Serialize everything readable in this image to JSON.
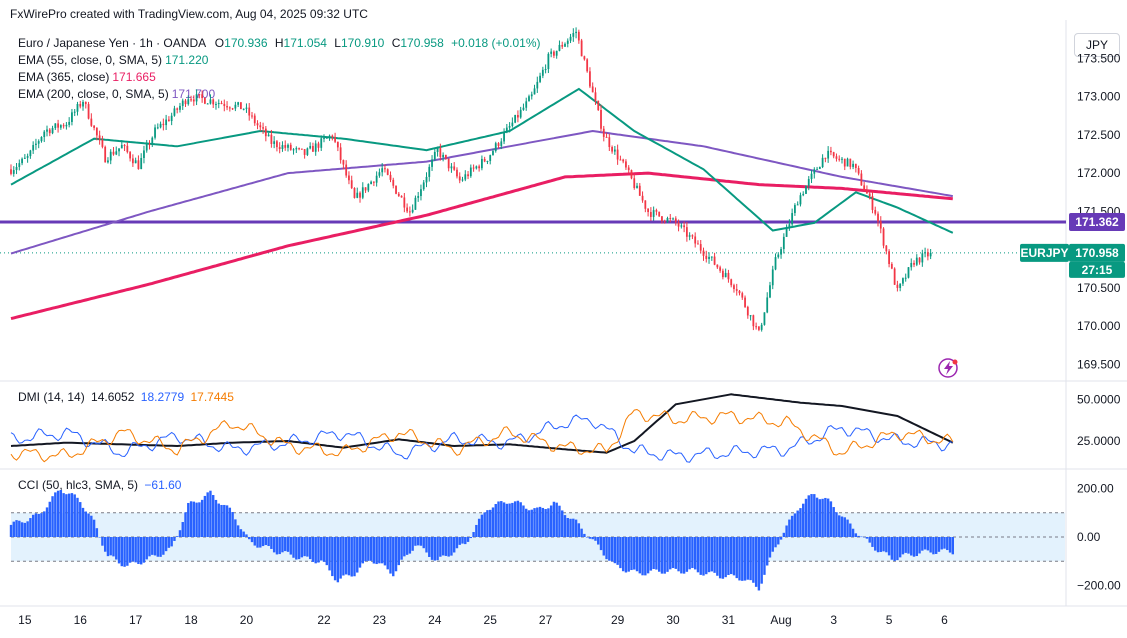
{
  "header": {
    "credit": "FxWirePro created with TradingView.com, Aug 04, 2025 09:32 UTC"
  },
  "currency_button": "JPY",
  "legend": {
    "symbol": "Euro / Japanese Yen · 1h · OANDA",
    "o_label": "O",
    "o": "170.936",
    "h_label": "H",
    "h": "171.054",
    "l_label": "L",
    "l": "170.910",
    "c_label": "C",
    "c": "170.958",
    "change": "+0.018 (+0.01%)",
    "ema55_label": "EMA (55, close, 0, SMA, 5)",
    "ema55": "171.220",
    "ema365_label": "EMA (365, close)",
    "ema365": "171.665",
    "ema200_label": "EMA (200, close, 0, SMA, 5)",
    "ema200": "171.700",
    "dmi_label": "DMI (14, 14)",
    "dmi_adx": "14.6052",
    "dmi_plus": "18.2779",
    "dmi_minus": "17.7445",
    "cci_label": "CCI (50, hlc3, SMA, 5)",
    "cci": "−61.60"
  },
  "colors": {
    "up": "#089981",
    "down": "#f23645",
    "ema55": "#089981",
    "ema365": "#e91e63",
    "ema200": "#7e57c2",
    "hline": "#673ab7",
    "adx": "#131722",
    "di_plus": "#2962ff",
    "di_minus": "#f57c00",
    "cci": "#2962ff",
    "cci_band": "#e3f2fd",
    "price_tag": "#089981"
  },
  "price_tags": {
    "hline_value": "171.362",
    "symbol": "EURJPY",
    "last": "170.958",
    "countdown": "27:15"
  },
  "chart_data": [
    {
      "type": "candlestick",
      "title": "Euro / Japanese Yen · 1h · OANDA",
      "ylim": [
        169.35,
        174.0
      ],
      "y_ticks": [
        "173.500",
        "173.000",
        "172.500",
        "172.000",
        "171.500",
        "171.000",
        "170.500",
        "170.000",
        "169.500"
      ],
      "y_tick_values": [
        173.5,
        173.0,
        172.5,
        172.0,
        171.5,
        171.0,
        170.5,
        170.0,
        169.5
      ],
      "x_labels": [
        "15",
        "16",
        "17",
        "18",
        "20",
        "22",
        "23",
        "24",
        "25",
        "27",
        "29",
        "30",
        "31",
        "Aug",
        "3",
        "5",
        "6"
      ],
      "x_label_index": [
        5,
        25,
        45,
        65,
        85,
        113,
        133,
        153,
        173,
        193,
        219,
        239,
        259,
        278,
        297,
        317,
        337
      ],
      "horizontal_line": 171.362,
      "price_anchors": [
        [
          0,
          172.05
        ],
        [
          6,
          172.2
        ],
        [
          12,
          172.55
        ],
        [
          20,
          172.65
        ],
        [
          26,
          172.95
        ],
        [
          34,
          172.2
        ],
        [
          40,
          172.35
        ],
        [
          46,
          172.1
        ],
        [
          52,
          172.55
        ],
        [
          58,
          172.75
        ],
        [
          64,
          173.0
        ],
        [
          72,
          172.95
        ],
        [
          84,
          172.85
        ],
        [
          94,
          172.4
        ],
        [
          106,
          172.25
        ],
        [
          116,
          172.5
        ],
        [
          124,
          171.65
        ],
        [
          134,
          172.05
        ],
        [
          144,
          171.5
        ],
        [
          154,
          172.3
        ],
        [
          162,
          171.9
        ],
        [
          172,
          172.2
        ],
        [
          180,
          172.6
        ],
        [
          188,
          173.0
        ],
        [
          194,
          173.5
        ],
        [
          204,
          173.85
        ],
        [
          214,
          172.5
        ],
        [
          222,
          172.05
        ],
        [
          230,
          171.5
        ],
        [
          240,
          171.35
        ],
        [
          252,
          170.9
        ],
        [
          262,
          170.5
        ],
        [
          270,
          169.9
        ],
        [
          276,
          170.85
        ],
        [
          284,
          171.65
        ],
        [
          294,
          172.25
        ],
        [
          304,
          172.1
        ],
        [
          312,
          171.5
        ],
        [
          320,
          170.45
        ],
        [
          326,
          170.85
        ],
        [
          332,
          170.95
        ]
      ],
      "ema55_anchors": [
        [
          0,
          171.85
        ],
        [
          30,
          172.45
        ],
        [
          60,
          172.35
        ],
        [
          90,
          172.55
        ],
        [
          120,
          172.45
        ],
        [
          150,
          172.3
        ],
        [
          180,
          172.55
        ],
        [
          205,
          173.1
        ],
        [
          225,
          172.55
        ],
        [
          250,
          172.05
        ],
        [
          275,
          171.25
        ],
        [
          290,
          171.35
        ],
        [
          305,
          171.75
        ],
        [
          320,
          171.55
        ],
        [
          340,
          171.22
        ]
      ],
      "ema365_anchors": [
        [
          0,
          170.1
        ],
        [
          50,
          170.55
        ],
        [
          100,
          171.05
        ],
        [
          150,
          171.45
        ],
        [
          200,
          171.95
        ],
        [
          230,
          172.0
        ],
        [
          270,
          171.85
        ],
        [
          300,
          171.8
        ],
        [
          340,
          171.665
        ]
      ],
      "ema200_anchors": [
        [
          0,
          170.95
        ],
        [
          50,
          171.5
        ],
        [
          100,
          172.0
        ],
        [
          150,
          172.15
        ],
        [
          210,
          172.55
        ],
        [
          250,
          172.35
        ],
        [
          300,
          171.95
        ],
        [
          340,
          171.7
        ]
      ],
      "last_close": 170.958
    },
    {
      "type": "line",
      "title": "DMI (14, 14)",
      "ylim": [
        10,
        58
      ],
      "y_ticks": [
        "50.0000",
        "25.0000"
      ],
      "y_tick_values": [
        50,
        25
      ],
      "series": [
        {
          "name": "ADX",
          "anchors": [
            [
              0,
              22
            ],
            [
              20,
              24
            ],
            [
              40,
              23
            ],
            [
              60,
              22
            ],
            [
              80,
              24
            ],
            [
              100,
              25
            ],
            [
              120,
              21
            ],
            [
              140,
              26
            ],
            [
              160,
              22
            ],
            [
              180,
              23
            ],
            [
              200,
              20
            ],
            [
              215,
              18
            ],
            [
              225,
              25
            ],
            [
              240,
              47
            ],
            [
              260,
              53
            ],
            [
              285,
              48
            ],
            [
              300,
              46
            ],
            [
              320,
              40
            ],
            [
              340,
              24
            ]
          ]
        },
        {
          "name": "+DI",
          "anchors": [
            [
              0,
              26
            ],
            [
              20,
              30
            ],
            [
              40,
              18
            ],
            [
              60,
              28
            ],
            [
              80,
              20
            ],
            [
              100,
              24
            ],
            [
              120,
              30
            ],
            [
              140,
              17
            ],
            [
              160,
              26
            ],
            [
              180,
              24
            ],
            [
              200,
              36
            ],
            [
              210,
              38
            ],
            [
              225,
              19
            ],
            [
              240,
              16
            ],
            [
              260,
              18
            ],
            [
              280,
              20
            ],
            [
              300,
              33
            ],
            [
              320,
              25
            ],
            [
              340,
              23
            ]
          ]
        },
        {
          "name": "-DI",
          "anchors": [
            [
              0,
              18
            ],
            [
              20,
              16
            ],
            [
              40,
              30
            ],
            [
              60,
              20
            ],
            [
              80,
              36
            ],
            [
              100,
              22
            ],
            [
              120,
              18
            ],
            [
              140,
              30
            ],
            [
              160,
              20
            ],
            [
              180,
              30
            ],
            [
              200,
              21
            ],
            [
              215,
              19
            ],
            [
              225,
              42
            ],
            [
              240,
              38
            ],
            [
              260,
              40
            ],
            [
              280,
              36
            ],
            [
              300,
              18
            ],
            [
              320,
              30
            ],
            [
              340,
              24
            ]
          ]
        }
      ]
    },
    {
      "type": "bar",
      "title": "CCI (50, hlc3, SMA, 5)",
      "ylim": [
        -260,
        260
      ],
      "y_ticks": [
        "200.00",
        "0.00",
        "−200.00"
      ],
      "y_tick_values": [
        200,
        0,
        -200
      ],
      "band": [
        -100,
        100
      ],
      "anchors": [
        [
          0,
          50
        ],
        [
          10,
          90
        ],
        [
          18,
          200
        ],
        [
          25,
          150
        ],
        [
          30,
          60
        ],
        [
          35,
          -80
        ],
        [
          42,
          -120
        ],
        [
          50,
          -90
        ],
        [
          58,
          -50
        ],
        [
          64,
          130
        ],
        [
          72,
          180
        ],
        [
          80,
          100
        ],
        [
          86,
          -20
        ],
        [
          96,
          -60
        ],
        [
          106,
          -90
        ],
        [
          112,
          -100
        ],
        [
          118,
          -180
        ],
        [
          124,
          -150
        ],
        [
          130,
          -90
        ],
        [
          138,
          -150
        ],
        [
          146,
          -30
        ],
        [
          154,
          -100
        ],
        [
          164,
          -30
        ],
        [
          172,
          120
        ],
        [
          180,
          150
        ],
        [
          190,
          110
        ],
        [
          196,
          140
        ],
        [
          204,
          60
        ],
        [
          212,
          -40
        ],
        [
          218,
          -120
        ],
        [
          226,
          -150
        ],
        [
          236,
          -140
        ],
        [
          246,
          -140
        ],
        [
          256,
          -160
        ],
        [
          264,
          -170
        ],
        [
          270,
          -210
        ],
        [
          276,
          -40
        ],
        [
          284,
          120
        ],
        [
          290,
          180
        ],
        [
          296,
          140
        ],
        [
          302,
          60
        ],
        [
          310,
          -30
        ],
        [
          318,
          -90
        ],
        [
          326,
          -70
        ],
        [
          332,
          -60
        ]
      ]
    }
  ]
}
